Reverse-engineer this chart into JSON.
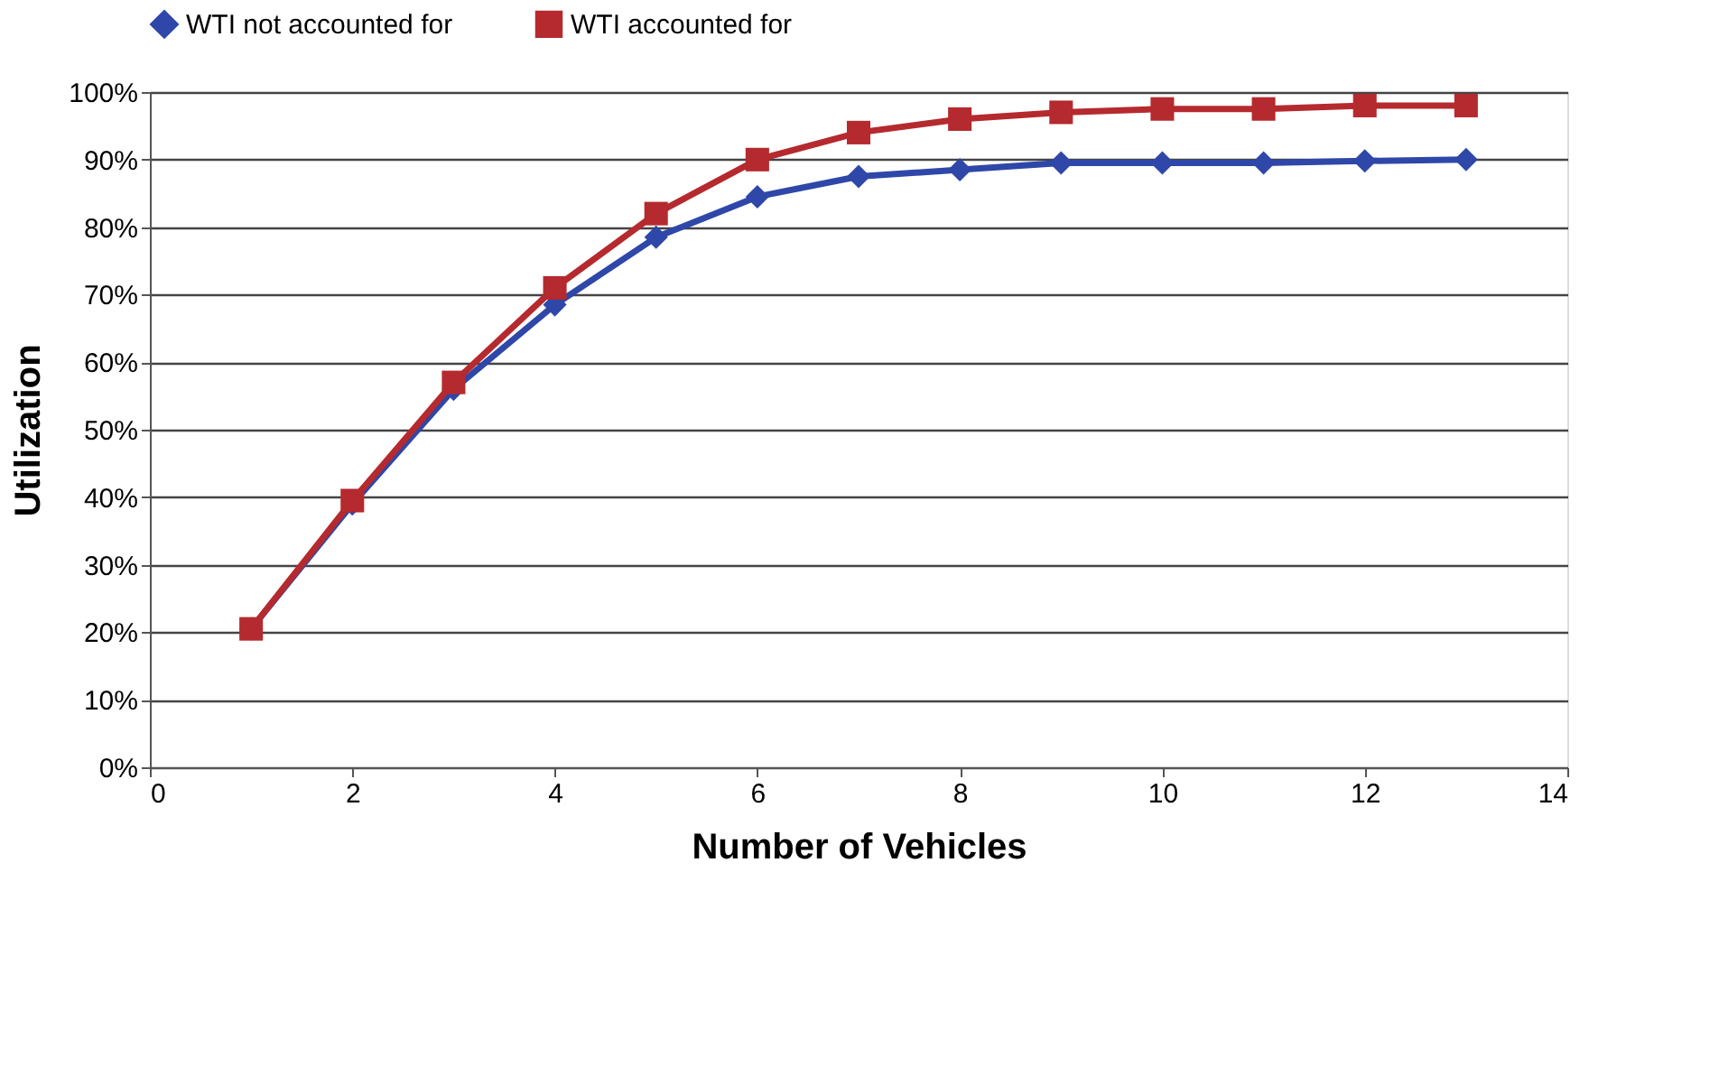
{
  "chart_data": {
    "type": "line",
    "xlabel": "Number of Vehicles",
    "ylabel": "Utilization",
    "x": [
      1,
      2,
      3,
      4,
      5,
      6,
      7,
      8,
      9,
      10,
      11,
      12,
      13
    ],
    "series": [
      {
        "name": "WTI not accounted for",
        "color": "#2e47a8",
        "marker": "diamond",
        "values": [
          20.5,
          39,
          56,
          68.5,
          78.5,
          84.5,
          87.5,
          88.5,
          89.5,
          89.5,
          89.5,
          89.8,
          90
        ]
      },
      {
        "name": "WTI accounted for",
        "color": "#b52a2e",
        "marker": "square",
        "values": [
          20.5,
          39.5,
          57,
          71,
          82,
          90,
          94,
          96,
          97,
          97.5,
          97.5,
          98,
          98
        ]
      }
    ],
    "xlim": [
      0,
      14
    ],
    "xticks": [
      0,
      2,
      4,
      6,
      8,
      10,
      12,
      14
    ],
    "ylim": [
      0,
      100
    ],
    "yticks": [
      {
        "value": 0,
        "label": "0%"
      },
      {
        "value": 10,
        "label": "10%"
      },
      {
        "value": 20,
        "label": "20%"
      },
      {
        "value": 30,
        "label": "30%"
      },
      {
        "value": 40,
        "label": "40%"
      },
      {
        "value": 50,
        "label": "50%"
      },
      {
        "value": 60,
        "label": "60%"
      },
      {
        "value": 70,
        "label": "70%"
      },
      {
        "value": 80,
        "label": "80%"
      },
      {
        "value": 90,
        "label": "90%"
      },
      {
        "value": 100,
        "label": "100%"
      }
    ],
    "grid": "y",
    "legend": "top",
    "line_style": "solid"
  }
}
